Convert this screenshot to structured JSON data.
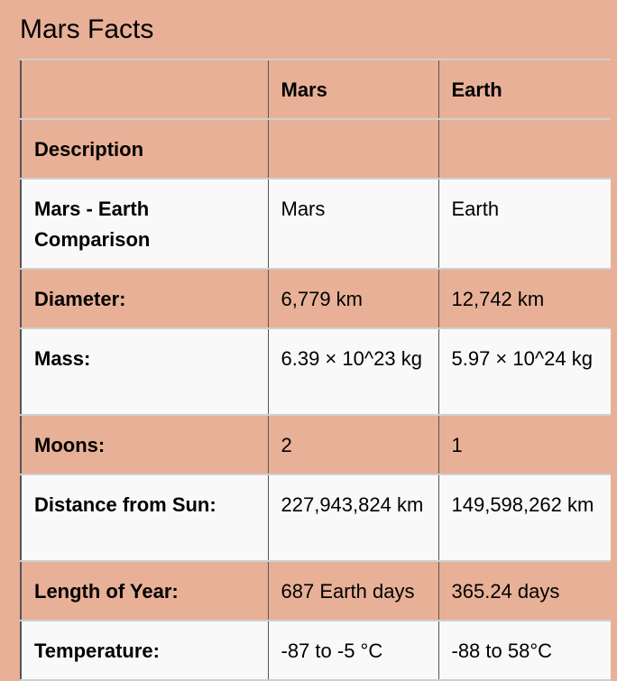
{
  "page": {
    "title": "Mars Facts"
  },
  "table": {
    "headers": [
      "",
      "Mars",
      "Earth"
    ],
    "rows": [
      {
        "label": "Description",
        "mars": "",
        "earth": ""
      },
      {
        "label": "Mars - Earth Comparison",
        "mars": "Mars",
        "earth": "Earth"
      },
      {
        "label": "Diameter:",
        "mars": "6,779 km",
        "earth": "12,742 km"
      },
      {
        "label": "Mass:",
        "mars": "6.39 × 10^23 kg",
        "earth": "5.97 × 10^24 kg"
      },
      {
        "label": "Moons:",
        "mars": "2",
        "earth": "1"
      },
      {
        "label": "Distance from Sun:",
        "mars": "227,943,824 km",
        "earth": "149,598,262 km"
      },
      {
        "label": "Length of Year:",
        "mars": "687 Earth days",
        "earth": "365.24 days"
      },
      {
        "label": "Temperature:",
        "mars": "-87 to -5 °C",
        "earth": "-88 to 58°C"
      }
    ]
  },
  "colors": {
    "page_background": "#e8b096",
    "alt_row_background": "#f9f9f9"
  }
}
